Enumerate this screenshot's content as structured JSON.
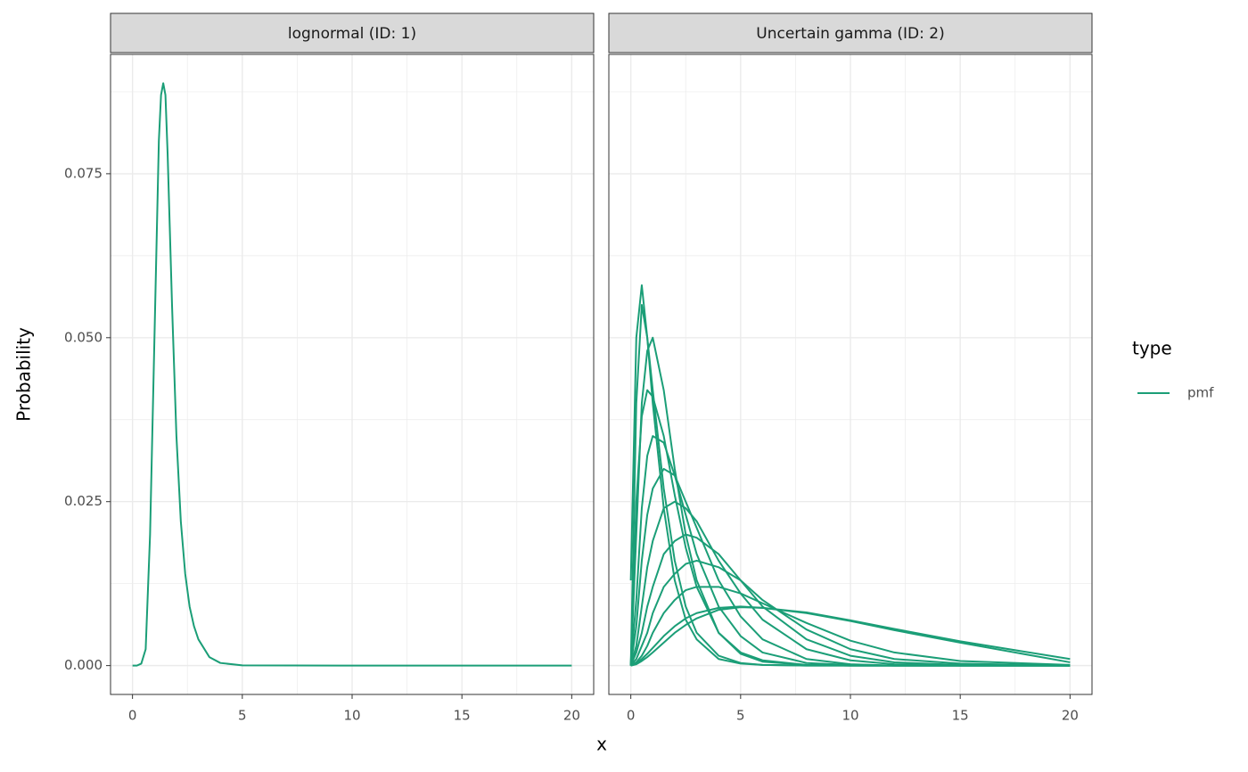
{
  "chart_data": {
    "type": "line",
    "x_label": "x",
    "y_label": "Probability",
    "legend": {
      "title": "type",
      "entries": [
        {
          "name": "pmf",
          "color": "#1b9e77"
        }
      ]
    },
    "xlim": [
      -1,
      21
    ],
    "xticks": [
      0,
      5,
      10,
      15,
      20
    ],
    "x_minor_ticks": [
      2.5,
      7.5,
      12.5,
      17.5
    ],
    "ylim": [
      -0.0044,
      0.0932
    ],
    "yticks": [
      {
        "value": 0,
        "label": "0.000"
      },
      {
        "value": 0.025,
        "label": "0.025"
      },
      {
        "value": 0.05,
        "label": "0.050"
      },
      {
        "value": 0.075,
        "label": "0.075"
      }
    ],
    "y_minor_ticks": [
      0.0125,
      0.0375,
      0.0625,
      0.0875
    ],
    "grid": true,
    "facets": [
      {
        "title": "lognormal (ID: 1)",
        "x": [
          0,
          0.2,
          0.4,
          0.6,
          0.8,
          1.0,
          1.2,
          1.3,
          1.4,
          1.5,
          1.6,
          1.8,
          2.0,
          2.2,
          2.4,
          2.6,
          2.8,
          3.0,
          3.5,
          4,
          5,
          10,
          20
        ],
        "series": [
          {
            "color": "#1b9e77",
            "values": [
              0,
              0,
              0.0003,
              0.0025,
              0.02,
              0.05,
              0.08,
              0.087,
              0.0888,
              0.087,
              0.078,
              0.055,
              0.035,
              0.022,
              0.014,
              0.009,
              0.006,
              0.004,
              0.0013,
              0.0004,
              3e-05,
              0,
              0
            ]
          }
        ]
      },
      {
        "title": "Uncertain gamma (ID: 2)",
        "x": [
          0,
          0.25,
          0.5,
          0.75,
          1,
          1.5,
          2,
          2.5,
          3,
          4,
          5,
          6,
          8,
          10,
          12,
          15,
          20
        ],
        "series": [
          {
            "color": "#1b9e77",
            "values": [
              0.013,
              0.05,
              0.058,
              0.05,
              0.04,
              0.024,
              0.013,
              0.007,
              0.004,
              0.001,
              0.0003,
              0.0001,
              0,
              0,
              0,
              0,
              0
            ]
          },
          {
            "color": "#1b9e77",
            "values": [
              0,
              0.04,
              0.055,
              0.05,
              0.042,
              0.027,
              0.016,
              0.009,
              0.005,
              0.0015,
              0.0004,
              0.0001,
              0,
              0,
              0,
              0,
              0
            ]
          },
          {
            "color": "#1b9e77",
            "values": [
              0,
              0.02,
              0.04,
              0.048,
              0.05,
              0.042,
              0.03,
              0.02,
              0.013,
              0.005,
              0.0018,
              0.0006,
              0.0001,
              0,
              0,
              0,
              0
            ]
          },
          {
            "color": "#1b9e77",
            "values": [
              0,
              0.025,
              0.038,
              0.042,
              0.041,
              0.035,
              0.026,
              0.018,
              0.012,
              0.005,
              0.002,
              0.0008,
              0.0001,
              0,
              0,
              0,
              0
            ]
          },
          {
            "color": "#1b9e77",
            "values": [
              0,
              0.01,
              0.024,
              0.032,
              0.035,
              0.034,
              0.029,
              0.023,
              0.017,
              0.009,
              0.0045,
              0.002,
              0.0004,
              0.0001,
              0,
              0,
              0
            ]
          },
          {
            "color": "#1b9e77",
            "values": [
              0,
              0.006,
              0.016,
              0.023,
              0.027,
              0.03,
              0.029,
              0.025,
              0.021,
              0.013,
              0.0075,
              0.004,
              0.001,
              0.0002,
              0,
              0,
              0
            ]
          },
          {
            "color": "#1b9e77",
            "values": [
              0,
              0.003,
              0.009,
              0.015,
              0.019,
              0.024,
              0.025,
              0.024,
              0.022,
              0.016,
              0.011,
              0.007,
              0.0025,
              0.0008,
              0.0002,
              0,
              0
            ]
          },
          {
            "color": "#1b9e77",
            "values": [
              0,
              0.002,
              0.005,
              0.009,
              0.012,
              0.017,
              0.019,
              0.02,
              0.0195,
              0.017,
              0.013,
              0.009,
              0.004,
              0.0015,
              0.0005,
              0.0001,
              0
            ]
          },
          {
            "color": "#1b9e77",
            "values": [
              0,
              0.001,
              0.003,
              0.005,
              0.008,
              0.012,
              0.014,
              0.0155,
              0.016,
              0.015,
              0.013,
              0.01,
              0.0055,
              0.0025,
              0.001,
              0.0003,
              0
            ]
          },
          {
            "color": "#1b9e77",
            "values": [
              0,
              0.0005,
              0.0015,
              0.003,
              0.005,
              0.008,
              0.01,
              0.0115,
              0.012,
              0.012,
              0.011,
              0.0095,
              0.0065,
              0.0038,
              0.002,
              0.0007,
              0.0001
            ]
          },
          {
            "color": "#1b9e77",
            "values": [
              0,
              0.0003,
              0.001,
              0.0018,
              0.0027,
              0.0045,
              0.006,
              0.0072,
              0.008,
              0.0088,
              0.009,
              0.0088,
              0.008,
              0.0068,
              0.0054,
              0.0035,
              0.0005
            ]
          },
          {
            "color": "#1b9e77",
            "values": [
              0,
              0.0002,
              0.0007,
              0.0013,
              0.002,
              0.0035,
              0.005,
              0.0062,
              0.0072,
              0.0085,
              0.0089,
              0.0088,
              0.0081,
              0.0069,
              0.0056,
              0.0037,
              0.001
            ]
          }
        ]
      }
    ]
  }
}
